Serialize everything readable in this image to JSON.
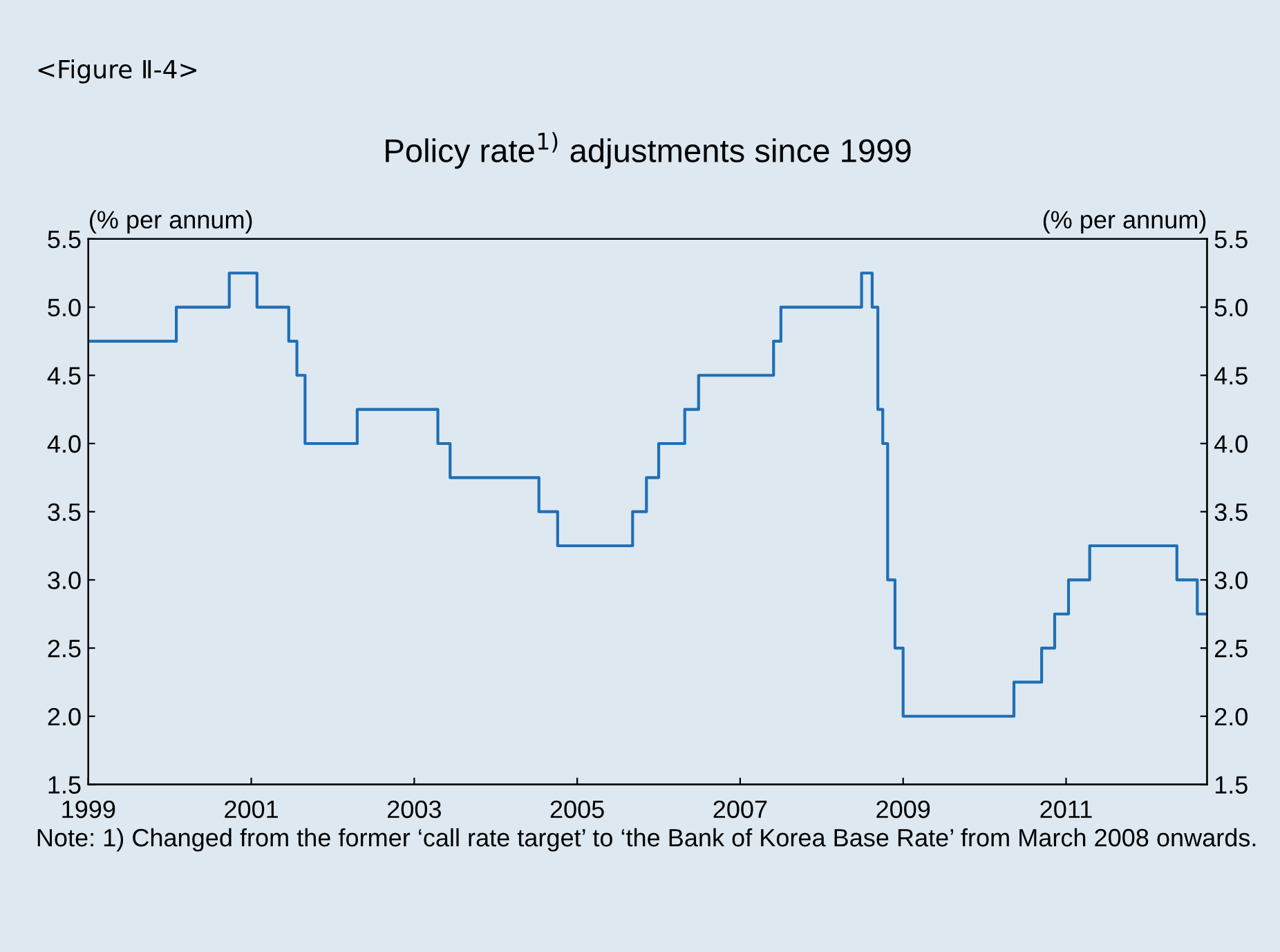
{
  "chart_data": {
    "type": "step",
    "title": "Policy rate$^{1)}$ adjustments since 1999",
    "ylabel": "(% per annum)",
    "y2label": "(% per annum)",
    "annotations": [
      "<Figure Ⅱ-4>",
      "Note: 1) Changed from the former ‘call rate target’ to ‘the Bank of Korea Base Rate’ from March 2008 onwards."
    ],
    "series": [
      {
        "color": "#1f6fb5",
        "x": [
          1999.0,
          2000.08,
          2000.73,
          2001.07,
          2001.46,
          2001.56,
          2001.66,
          2002.3,
          2003.29,
          2003.44,
          2004.53,
          2004.76,
          2005.68,
          2005.85,
          2006.0,
          2006.32,
          2006.49,
          2007.41,
          2007.5,
          2008.49,
          2008.62,
          2008.69,
          2008.75,
          2008.81,
          2008.9,
          2009.0,
          2010.36,
          2010.7,
          2010.86,
          2011.03,
          2011.29,
          2012.36,
          2012.61,
          2012.73
        ],
        "values": [
          4.75,
          5.0,
          5.25,
          5.0,
          4.75,
          4.5,
          4.0,
          4.25,
          4.0,
          3.75,
          3.5,
          3.25,
          3.5,
          3.75,
          4.0,
          4.25,
          4.5,
          4.75,
          5.0,
          5.25,
          5.0,
          4.25,
          4.0,
          3.0,
          2.5,
          2.0,
          2.25,
          2.5,
          2.75,
          3.0,
          3.25,
          3.0,
          2.75,
          2.75
        ]
      }
    ],
    "xlim": [
      1999,
      2012.73
    ],
    "xticks": [
      1999,
      2001,
      2003,
      2005,
      2007,
      2009,
      2011
    ],
    "ylim": [
      1.5,
      5.5
    ],
    "yticks": [
      1.5,
      {
        "value": 2,
        "label": "2.0"
      },
      2.5,
      {
        "value": 3,
        "label": "3.0"
      },
      3.5,
      {
        "value": 4,
        "label": "4.0"
      },
      4.5,
      {
        "value": 5,
        "label": "5.0"
      },
      5.5
    ],
    "y2lim": [
      1.5,
      5.5
    ],
    "y2ticks": [
      1.5,
      {
        "value": 2,
        "label": "2.0"
      },
      2.5,
      {
        "value": 3,
        "label": "3.0"
      },
      3.5,
      {
        "value": 4,
        "label": "4.0"
      },
      4.5,
      {
        "value": 5,
        "label": "5.0"
      },
      5.5
    ],
    "grid": false,
    "line_style": "solid"
  }
}
